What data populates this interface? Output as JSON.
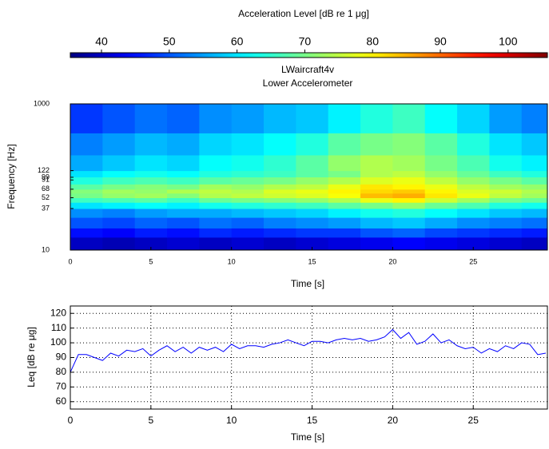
{
  "chart_data": [
    {
      "type": "heatmap",
      "title": "LWaircraft4v",
      "subtitle": "Lower Accelerometer",
      "x_label": "Time   [s]",
      "y_label": "Frequency   [Hz]",
      "colorbar_label": "Acceleration Level  [dB re 1 μg]",
      "colormap": "jet",
      "clim": [
        35.4,
        105.8
      ],
      "colorbar_ticks": [
        40,
        50,
        60,
        70,
        80,
        90,
        100
      ],
      "xlim": [
        0,
        29.6
      ],
      "xticks": [
        0,
        5,
        10,
        15,
        20,
        25
      ],
      "ylim": [
        10,
        1000
      ],
      "yticks": [
        10,
        37,
        52,
        68,
        91,
        99,
        122,
        1000
      ],
      "y_scale": "log",
      "x_bins": [
        0,
        2,
        4,
        6,
        8,
        10,
        12,
        14,
        16,
        18,
        20,
        22,
        24,
        26,
        28,
        30
      ],
      "y_bins": [
        10,
        15,
        20,
        28,
        37,
        45,
        52,
        60,
        68,
        80,
        100,
        122,
        200,
        400,
        1000
      ],
      "z": [
        [
          40,
          39,
          40,
          41,
          40,
          41,
          40,
          41,
          42,
          43,
          44,
          43,
          42,
          41,
          40
        ],
        [
          45,
          44,
          46,
          45,
          47,
          46,
          47,
          48,
          48,
          50,
          51,
          49,
          48,
          47,
          46
        ],
        [
          50,
          49,
          51,
          50,
          52,
          51,
          53,
          54,
          55,
          57,
          58,
          56,
          54,
          53,
          52
        ],
        [
          54,
          53,
          55,
          56,
          56,
          57,
          58,
          59,
          61,
          63,
          64,
          62,
          60,
          58,
          57
        ],
        [
          60,
          61,
          62,
          61,
          63,
          64,
          65,
          66,
          68,
          70,
          72,
          69,
          67,
          64,
          63
        ],
        [
          66,
          67,
          68,
          66,
          69,
          70,
          71,
          72,
          74,
          78,
          80,
          76,
          73,
          70,
          69
        ],
        [
          70,
          72,
          73,
          71,
          74,
          75,
          76,
          77,
          79,
          84,
          85,
          81,
          78,
          75,
          73
        ],
        [
          71,
          73,
          72,
          74,
          75,
          74,
          77,
          78,
          80,
          82,
          83,
          80,
          77,
          76,
          74
        ],
        [
          68,
          70,
          71,
          70,
          73,
          72,
          74,
          75,
          78,
          81,
          80,
          78,
          75,
          73,
          72
        ],
        [
          64,
          66,
          67,
          66,
          68,
          69,
          70,
          72,
          74,
          77,
          78,
          75,
          72,
          70,
          68
        ],
        [
          60,
          62,
          63,
          62,
          64,
          65,
          66,
          68,
          70,
          74,
          75,
          72,
          69,
          66,
          64
        ],
        [
          56,
          58,
          60,
          59,
          62,
          63,
          65,
          68,
          72,
          74,
          73,
          70,
          67,
          63,
          61
        ],
        [
          53,
          55,
          57,
          56,
          59,
          60,
          62,
          64,
          68,
          70,
          71,
          68,
          64,
          60,
          58
        ],
        [
          48,
          50,
          52,
          51,
          54,
          55,
          57,
          58,
          61,
          64,
          66,
          62,
          59,
          55,
          53
        ]
      ]
    },
    {
      "type": "line",
      "x_label": "Time   [s]",
      "y_label": "Leq  [dB re μg]",
      "grid": true,
      "xlim": [
        0,
        29.6
      ],
      "xticks": [
        0,
        5,
        10,
        15,
        20,
        25
      ],
      "ylim": [
        55,
        125
      ],
      "yticks": [
        60,
        70,
        80,
        90,
        100,
        110,
        120
      ],
      "x": [
        0,
        0.5,
        1,
        1.5,
        2,
        2.5,
        3,
        3.5,
        4,
        4.5,
        5,
        5.5,
        6,
        6.5,
        7,
        7.5,
        8,
        8.5,
        9,
        9.5,
        10,
        10.5,
        11,
        11.5,
        12,
        12.5,
        13,
        13.5,
        14,
        14.5,
        15,
        15.5,
        16,
        16.5,
        17,
        17.5,
        18,
        18.5,
        19,
        19.5,
        20,
        20.5,
        21,
        21.5,
        22,
        22.5,
        23,
        23.5,
        24,
        24.5,
        25,
        25.5,
        26,
        26.5,
        27,
        27.5,
        28,
        28.5,
        29,
        29.5
      ],
      "series": [
        {
          "color": "#0000ff",
          "values": [
            80,
            92,
            92,
            90,
            88,
            93,
            91,
            95,
            94,
            96,
            91,
            95,
            98,
            94,
            97,
            93,
            97,
            95,
            97,
            94,
            99,
            96,
            98,
            98,
            97,
            99,
            100,
            102,
            100,
            98,
            101,
            101,
            100,
            102,
            103,
            102,
            103,
            101,
            102,
            104,
            109,
            103,
            107,
            99,
            101,
            106,
            100,
            102,
            98,
            96,
            97,
            93,
            96,
            94,
            98,
            96,
            100,
            99,
            92,
            93
          ]
        }
      ]
    }
  ]
}
